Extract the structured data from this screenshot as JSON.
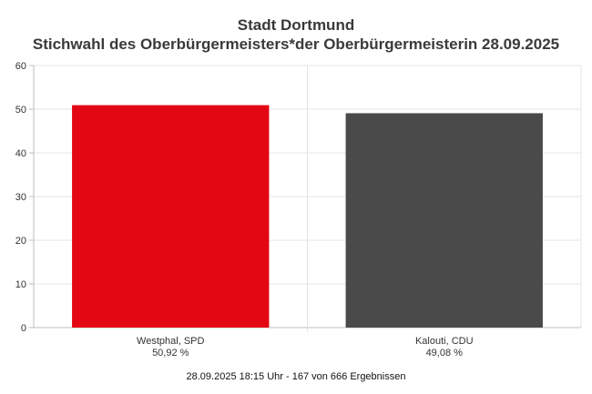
{
  "chart_data": {
    "type": "bar",
    "title": "Stadt Dortmund",
    "subtitle": "Stichwahl des Oberbürgermeisters*der Oberbürgermeisterin 28.09.2025",
    "categories": [
      "Westphal, SPD",
      "Kalouti, CDU"
    ],
    "value_labels": [
      "50,92 %",
      "49,08 %"
    ],
    "values": [
      50.92,
      49.08
    ],
    "colors": [
      "#e30613",
      "#4a4a4a"
    ],
    "ylim": [
      0,
      60
    ],
    "yticks": [
      0,
      10,
      20,
      30,
      40,
      50,
      60
    ],
    "grid": true,
    "xlabel": "",
    "ylabel": ""
  },
  "footer": "28.09.2025 18:15 Uhr - 167 von 666 Ergebnissen"
}
